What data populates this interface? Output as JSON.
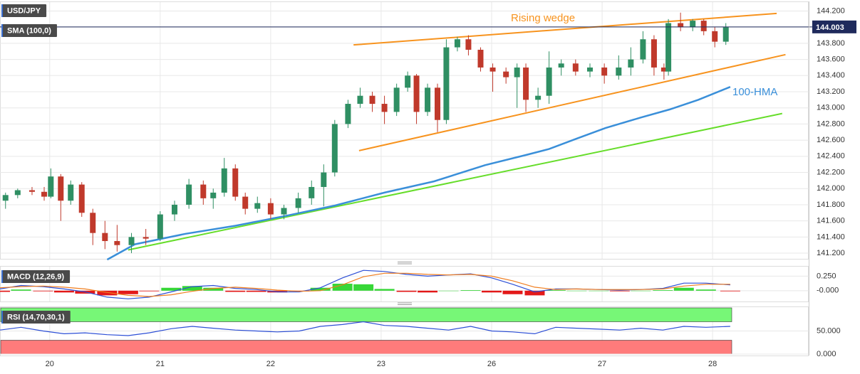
{
  "chart_data": [
    {
      "type": "candlestick",
      "title": "USD/JPY",
      "indicator": "SMA (100,0)",
      "xlim": [
        -0.45,
        6.87
      ],
      "xticks": [
        {
          "value": 0,
          "label": "20"
        },
        {
          "value": 1,
          "label": "21"
        },
        {
          "value": 2,
          "label": "22"
        },
        {
          "value": 3,
          "label": "23"
        },
        {
          "value": 4,
          "label": "26"
        },
        {
          "value": 5,
          "label": "27"
        },
        {
          "value": 6,
          "label": "28"
        }
      ],
      "ylim": [
        141.13,
        144.31
      ],
      "yticks": [
        {
          "value": 141.2,
          "label": "141.200"
        },
        {
          "value": 141.4,
          "label": "141.400"
        },
        {
          "value": 141.6,
          "label": "141.600"
        },
        {
          "value": 141.8,
          "label": "141.800"
        },
        {
          "value": 142.0,
          "label": "142.000"
        },
        {
          "value": 142.2,
          "label": "142.200"
        },
        {
          "value": 142.4,
          "label": "142.400"
        },
        {
          "value": 142.6,
          "label": "142.600"
        },
        {
          "value": 142.8,
          "label": "142.800"
        },
        {
          "value": 143.0,
          "label": "143.000"
        },
        {
          "value": 143.2,
          "label": "143.200"
        },
        {
          "value": 143.4,
          "label": "143.400"
        },
        {
          "value": 143.6,
          "label": "143.600"
        },
        {
          "value": 143.8,
          "label": "143.800"
        },
        {
          "value": 144.0,
          "label": "144.000"
        },
        {
          "value": 144.2,
          "label": "144.200"
        }
      ],
      "grid": true,
      "up_color": "#2f8f63",
      "down_color": "#c0392b",
      "last_price": 144.003,
      "last_price_color": "#1f2a5c",
      "annotation": "Rising wedge",
      "x": [
        -0.4,
        -0.29,
        -0.16,
        -0.05,
        0.01,
        0.1,
        0.19,
        0.29,
        0.39,
        0.5,
        0.61,
        0.74,
        0.87,
        1.0,
        1.13,
        1.26,
        1.39,
        1.48,
        1.58,
        1.68,
        1.77,
        1.88,
        2.0,
        2.12,
        2.25,
        2.37,
        2.48,
        2.58,
        2.7,
        2.81,
        2.92,
        3.03,
        3.14,
        3.24,
        3.32,
        3.42,
        3.51,
        3.59,
        3.69,
        3.79,
        3.9,
        4.01,
        4.13,
        4.23,
        4.31,
        4.42,
        4.52,
        4.63,
        4.76,
        4.89,
        5.02,
        5.15,
        5.26,
        5.37,
        5.47,
        5.56,
        5.6,
        5.71,
        5.82,
        5.92,
        6.02,
        6.12
      ],
      "open": [
        141.85,
        141.92,
        141.98,
        141.96,
        141.9,
        142.15,
        141.85,
        142.05,
        141.7,
        141.45,
        141.35,
        141.3,
        141.4,
        141.38,
        141.68,
        141.8,
        142.05,
        141.88,
        141.95,
        142.25,
        141.9,
        141.75,
        141.82,
        141.68,
        141.76,
        141.88,
        142.02,
        142.2,
        142.8,
        143.05,
        143.15,
        143.05,
        142.95,
        143.25,
        143.4,
        142.95,
        143.25,
        142.85,
        143.75,
        143.85,
        143.72,
        143.5,
        143.45,
        143.38,
        143.5,
        143.1,
        143.15,
        143.5,
        143.55,
        143.45,
        143.5,
        143.4,
        143.5,
        143.6,
        143.85,
        143.5,
        143.45,
        144.05,
        144.0,
        144.08,
        143.95,
        143.82
      ],
      "high": [
        141.95,
        142.0,
        142.02,
        142.02,
        142.25,
        142.18,
        142.1,
        142.08,
        141.75,
        141.6,
        141.55,
        141.45,
        141.5,
        141.72,
        141.85,
        142.12,
        142.1,
        142.0,
        142.38,
        142.3,
        141.95,
        141.9,
        141.88,
        141.8,
        141.95,
        142.1,
        142.3,
        142.85,
        143.1,
        143.25,
        143.2,
        143.15,
        143.3,
        143.45,
        143.42,
        143.3,
        143.3,
        143.85,
        143.88,
        143.9,
        143.75,
        143.55,
        143.5,
        143.55,
        143.55,
        143.25,
        143.7,
        143.6,
        143.6,
        143.55,
        143.55,
        143.65,
        143.75,
        143.95,
        143.9,
        143.55,
        144.1,
        144.18,
        144.1,
        144.1,
        144.0,
        144.05
      ],
      "low": [
        141.75,
        141.88,
        141.92,
        141.85,
        141.88,
        141.6,
        141.8,
        141.65,
        141.3,
        141.25,
        141.22,
        141.2,
        141.3,
        141.35,
        141.6,
        141.75,
        141.8,
        141.75,
        141.9,
        141.85,
        141.68,
        141.7,
        141.62,
        141.62,
        141.7,
        141.8,
        141.78,
        142.15,
        142.75,
        143.0,
        142.95,
        142.8,
        142.9,
        143.2,
        142.8,
        142.9,
        142.7,
        142.8,
        143.7,
        143.65,
        143.45,
        143.2,
        143.3,
        143.0,
        142.95,
        143.0,
        143.05,
        143.4,
        143.4,
        143.38,
        143.3,
        143.35,
        143.4,
        143.55,
        143.4,
        143.35,
        143.4,
        143.95,
        143.95,
        143.9,
        143.75,
        143.78
      ],
      "close": [
        141.92,
        141.98,
        141.96,
        141.9,
        142.15,
        141.85,
        142.05,
        141.7,
        141.45,
        141.35,
        141.3,
        141.4,
        141.38,
        141.68,
        141.8,
        142.05,
        141.88,
        141.95,
        142.25,
        141.9,
        141.75,
        141.82,
        141.68,
        141.76,
        141.88,
        142.02,
        142.2,
        142.8,
        143.05,
        143.15,
        143.05,
        142.95,
        143.25,
        143.4,
        142.95,
        143.25,
        142.85,
        143.75,
        143.85,
        143.72,
        143.5,
        143.45,
        143.38,
        143.5,
        143.1,
        143.15,
        143.5,
        143.55,
        143.45,
        143.5,
        143.4,
        143.5,
        143.6,
        143.85,
        143.5,
        143.45,
        144.05,
        144.0,
        144.08,
        143.95,
        143.82,
        144.0
      ],
      "series": [
        {
          "name": "100-HMA",
          "color": "#3a8fd9",
          "x": [
            0.52,
            0.77,
            1.23,
            1.68,
            2.13,
            2.58,
            3.03,
            3.48,
            3.94,
            4.32,
            4.52,
            4.77,
            5.03,
            5.35,
            5.61,
            5.87,
            6.16
          ],
          "values": [
            141.12,
            141.31,
            141.44,
            141.54,
            141.66,
            141.79,
            141.95,
            142.09,
            142.29,
            142.42,
            142.49,
            142.62,
            142.75,
            142.88,
            142.98,
            143.1,
            143.26
          ]
        }
      ],
      "trendlines": [
        {
          "color": "#f7931e",
          "x": [
            2.75,
            6.58
          ],
          "y": [
            143.78,
            144.17
          ]
        },
        {
          "color": "#f7931e",
          "x": [
            2.8,
            6.66
          ],
          "y": [
            142.47,
            143.66
          ]
        },
        {
          "color": "#66dd2a",
          "x": [
            0.71,
            6.63
          ],
          "y": [
            141.24,
            142.93
          ]
        }
      ]
    },
    {
      "type": "macd",
      "title": "MACD (12,26,9)",
      "ylim": [
        -0.185,
        0.413
      ],
      "yticks": [
        {
          "value": 0.25,
          "label": "0.250"
        },
        {
          "value": 0,
          "label": "-0.000"
        }
      ],
      "x": [
        -0.45,
        -0.26,
        -0.06,
        0.13,
        0.32,
        0.52,
        0.71,
        0.9,
        1.1,
        1.29,
        1.48,
        1.68,
        1.87,
        2.06,
        2.26,
        2.45,
        2.65,
        2.84,
        3.03,
        3.23,
        3.42,
        3.61,
        3.81,
        4.0,
        4.19,
        4.39,
        4.58,
        4.77,
        4.97,
        5.16,
        5.35,
        5.55,
        5.74,
        5.94,
        6.16
      ],
      "series": [
        {
          "color": "#2d4fd6",
          "values": [
            0.03,
            0.09,
            0.07,
            0.03,
            -0.02,
            -0.11,
            -0.14,
            -0.11,
            -0.02,
            0.07,
            0.09,
            0.04,
            0.02,
            -0.02,
            -0.02,
            0.05,
            0.22,
            0.35,
            0.33,
            0.28,
            0.25,
            0.27,
            0.29,
            0.22,
            0.11,
            -0.02,
            0.03,
            0.03,
            0.02,
            0.01,
            0.02,
            0.04,
            0.13,
            0.13,
            0.1
          ]
        },
        {
          "color": "#f07d1e",
          "values": [
            0.05,
            0.07,
            0.08,
            0.06,
            0.03,
            -0.03,
            -0.08,
            -0.1,
            -0.07,
            -0.01,
            0.04,
            0.06,
            0.04,
            0.01,
            -0.01,
            0.0,
            0.1,
            0.24,
            0.3,
            0.3,
            0.28,
            0.27,
            0.28,
            0.25,
            0.17,
            0.06,
            0.02,
            0.03,
            0.02,
            0.02,
            0.02,
            0.03,
            0.08,
            0.11,
            0.11
          ]
        }
      ],
      "histogram": {
        "up_color": "#21d321",
        "down_color": "#e00000",
        "values": [
          -0.02,
          0.02,
          -0.01,
          -0.03,
          -0.05,
          -0.08,
          -0.06,
          -0.01,
          0.05,
          0.08,
          0.05,
          -0.02,
          -0.02,
          -0.03,
          -0.01,
          0.05,
          0.12,
          0.11,
          0.03,
          -0.02,
          -0.03,
          0.0,
          0.01,
          -0.03,
          -0.06,
          -0.08,
          0.01,
          0.0,
          0.0,
          -0.01,
          0.0,
          0.01,
          0.05,
          0.02,
          -0.01
        ]
      }
    },
    {
      "type": "rsi",
      "title": "RSI (14,70,30,1)",
      "ylim": [
        0,
        100
      ],
      "yticks": [
        {
          "value": 50,
          "label": "50.000"
        },
        {
          "value": 0,
          "label": "0.000"
        }
      ],
      "overbought": 70,
      "oversold": 30,
      "overbought_color": "#77f777",
      "oversold_color": "#ff7b7b",
      "color": "#2d4fd6",
      "x": [
        -0.45,
        -0.26,
        -0.06,
        0.13,
        0.32,
        0.52,
        0.71,
        0.9,
        1.1,
        1.29,
        1.48,
        1.68,
        1.87,
        2.06,
        2.26,
        2.45,
        2.65,
        2.84,
        3.03,
        3.23,
        3.42,
        3.61,
        3.81,
        4.0,
        4.19,
        4.39,
        4.58,
        4.77,
        4.97,
        5.16,
        5.35,
        5.55,
        5.74,
        5.94,
        6.16
      ],
      "values": [
        52,
        58,
        50,
        44,
        46,
        42,
        40,
        46,
        55,
        60,
        56,
        52,
        50,
        48,
        50,
        60,
        64,
        70,
        62,
        60,
        56,
        52,
        60,
        50,
        48,
        44,
        58,
        56,
        54,
        52,
        56,
        52,
        60,
        58,
        60
      ]
    }
  ]
}
